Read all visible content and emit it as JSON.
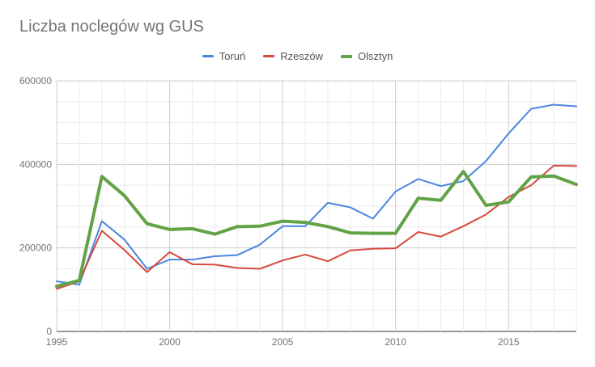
{
  "chart_data": {
    "type": "line",
    "title": "Liczba noclegów wg GUS",
    "xlabel": "",
    "ylabel": "",
    "x": [
      1995,
      1996,
      1997,
      1998,
      1999,
      2000,
      2001,
      2002,
      2003,
      2004,
      2005,
      2006,
      2007,
      2008,
      2009,
      2010,
      2011,
      2012,
      2013,
      2014,
      2015,
      2016,
      2017,
      2018
    ],
    "xlim": [
      1995,
      2018
    ],
    "ylim": [
      0,
      600000
    ],
    "x_ticks": [
      "1995",
      "2000",
      "2005",
      "2010",
      "2015"
    ],
    "y_ticks": [
      "0",
      "200000",
      "400000",
      "600000"
    ],
    "grid": true,
    "legend": "top",
    "series": [
      {
        "name": "Toruń",
        "color": "#4a86e0",
        "values": [
          120000,
          112000,
          264000,
          220000,
          150000,
          172000,
          172000,
          180000,
          183000,
          208000,
          252000,
          252000,
          308000,
          297000,
          270000,
          335000,
          365000,
          348000,
          360000,
          408000,
          474000,
          533000,
          543000,
          539000
        ]
      },
      {
        "name": "Rzeszów",
        "color": "#d54b3e",
        "values": [
          102000,
          120000,
          241000,
          195000,
          142000,
          190000,
          161000,
          160000,
          152000,
          150000,
          170000,
          184000,
          168000,
          194000,
          198000,
          199000,
          238000,
          227000,
          252000,
          280000,
          322000,
          350000,
          397000,
          396000
        ]
      },
      {
        "name": "Olsztyn",
        "color": "#62a347",
        "values": [
          108000,
          122000,
          371000,
          325000,
          258000,
          244000,
          246000,
          233000,
          251000,
          252000,
          264000,
          261000,
          251000,
          236000,
          235000,
          235000,
          319000,
          314000,
          383000,
          302000,
          310000,
          370000,
          372000,
          352000
        ]
      }
    ]
  }
}
